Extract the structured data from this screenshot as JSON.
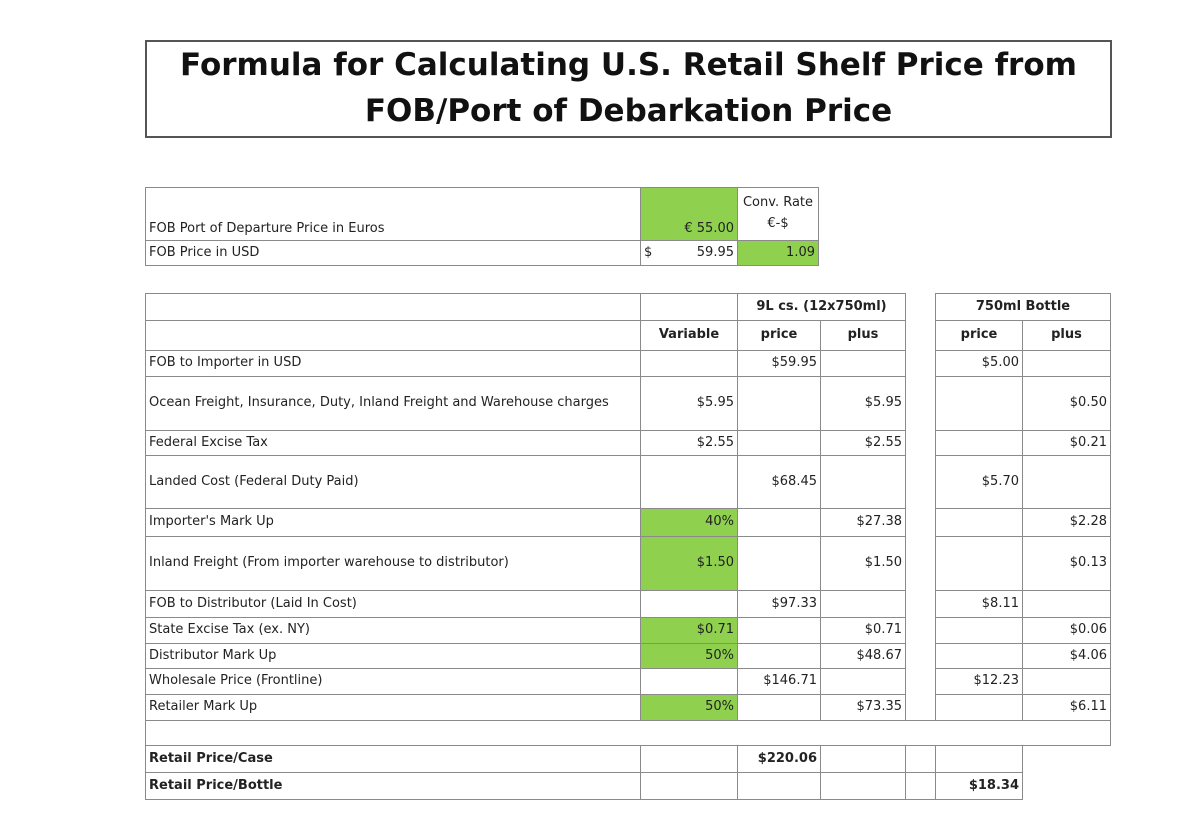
{
  "title": {
    "lines": [
      "Formula for Calculating U.S. Retail Shelf Price from",
      "FOB/Port of Debarkation Price"
    ]
  },
  "fob_table": {
    "rows": [
      {
        "label": "FOB Port of Departure Price in Euros",
        "value": "€ 55.00",
        "rate_label": "Conv. Rate €-$"
      },
      {
        "label": "FOB Price in USD",
        "currency": "$",
        "value": "59.95",
        "rate": "1.09"
      }
    ]
  },
  "main_table": {
    "group_headers": {
      "case": "9L cs. (12x750ml)",
      "bottle": "750ml Bottle"
    },
    "column_headers": {
      "variable": "Variable",
      "case_price": "price",
      "case_plus": "plus",
      "bottle_price": "price",
      "bottle_plus": "plus"
    },
    "rows": [
      {
        "label": "FOB to Importer in USD",
        "case_price": "$59.95",
        "bottle_price": "$5.00"
      },
      {
        "label": "Ocean Freight, Insurance, Duty, Inland Freight and Warehouse charges",
        "variable": "$5.95",
        "case_plus": "$5.95",
        "bottle_plus": "$0.50"
      },
      {
        "label": "Federal Excise Tax",
        "variable": "$2.55",
        "case_plus": "$2.55",
        "bottle_plus": "$0.21"
      },
      {
        "label": "Landed Cost (Federal Duty Paid)",
        "case_price": "$68.45",
        "bottle_price": "$5.70"
      },
      {
        "label": "Importer's Mark Up",
        "variable": "40%",
        "case_plus": "$27.38",
        "bottle_plus": "$2.28"
      },
      {
        "label": "Inland Freight (From importer warehouse to distributor)",
        "variable": "$1.50",
        "case_plus": "$1.50",
        "bottle_plus": "$0.13"
      },
      {
        "label": "FOB to Distributor (Laid In Cost)",
        "case_price": "$97.33",
        "bottle_price": "$8.11"
      },
      {
        "label": "State Excise Tax (ex. NY)",
        "variable": "$0.71",
        "case_plus": "$0.71",
        "bottle_plus": "$0.06"
      },
      {
        "label": "Distributor Mark Up",
        "variable": "50%",
        "case_plus": "$48.67",
        "bottle_plus": "$4.06"
      },
      {
        "label": "Wholesale Price (Frontline)",
        "case_price": "$146.71",
        "bottle_price": "$12.23"
      },
      {
        "label": "Retailer Mark Up",
        "variable": "50%",
        "case_plus": "$73.35",
        "bottle_plus": "$6.11"
      }
    ],
    "totals": [
      {
        "label": "Retail Price/Case",
        "case_price": "$220.06"
      },
      {
        "label": "Retail Price/Bottle",
        "bottle_price": "$18.34"
      }
    ]
  }
}
